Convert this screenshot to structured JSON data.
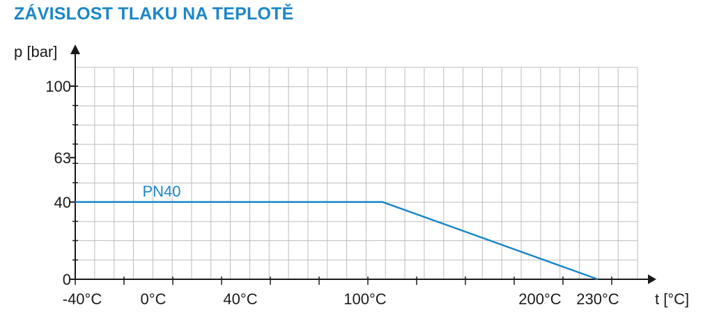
{
  "title": "ZÁVISLOST TLAKU NA TEPLOTĚ",
  "colors": {
    "title": "#1b86c8",
    "series": "#1b86c8",
    "grid": "#bdbdbd",
    "axis": "#1a1a1a"
  },
  "chart_data": {
    "type": "line",
    "title": "ZÁVISLOST TLAKU NA TEPLOTĚ",
    "xlabel": "t [°C]",
    "ylabel": "p [bar]",
    "x_ticks": [
      {
        "value": -40,
        "label": "-40°C"
      },
      {
        "value": 0,
        "label": "0°C"
      },
      {
        "value": 40,
        "label": "40°C"
      },
      {
        "value": 100,
        "label": "100°C"
      },
      {
        "value": 200,
        "label": "200°C"
      },
      {
        "value": 230,
        "label": "230°C"
      }
    ],
    "y_ticks": [
      {
        "value": 0,
        "label": "0"
      },
      {
        "value": 40,
        "label": "40"
      },
      {
        "value": 63,
        "label": "63"
      },
      {
        "value": 100,
        "label": "100"
      }
    ],
    "xlim": [
      -40,
      250
    ],
    "ylim": [
      0,
      110
    ],
    "grid": true,
    "series": [
      {
        "name": "PN40",
        "x": [
          -40,
          110,
          230
        ],
        "y": [
          40,
          40,
          0
        ]
      }
    ]
  }
}
